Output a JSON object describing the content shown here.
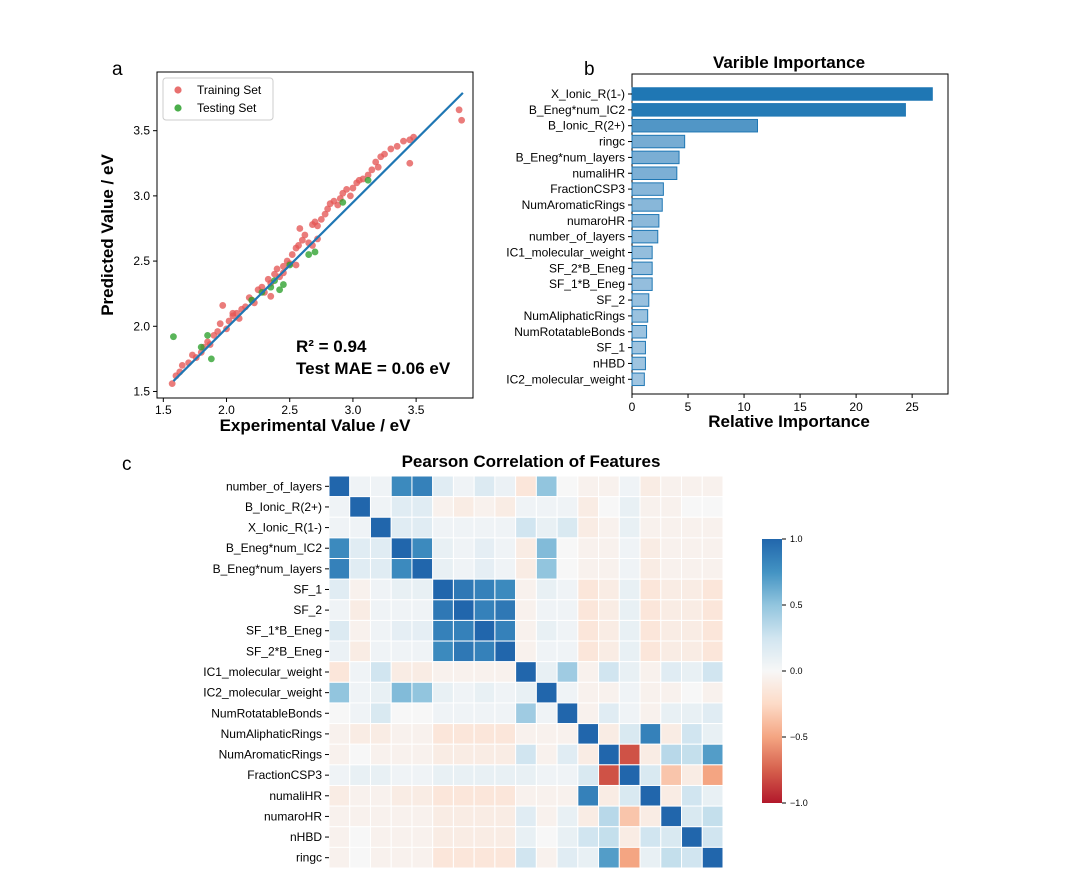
{
  "chart_data": [
    {
      "panel": "a",
      "type": "scatter",
      "title": "",
      "xlabel": "Experimental Value / eV",
      "ylabel": "Predicted Value / eV",
      "xlim": [
        1.45,
        3.95
      ],
      "ylim": [
        1.45,
        3.95
      ],
      "xticks": [
        "1.5",
        "2.0",
        "2.5",
        "3.0",
        "3.5"
      ],
      "yticks": [
        "1.5",
        "2.0",
        "2.5",
        "3.0",
        "3.5"
      ],
      "legend": [
        "Training Set",
        "Testing Set"
      ],
      "annotations": [
        "R² = 0.94",
        "Test MAE = 0.06 eV"
      ],
      "colors": {
        "training": "#e45756",
        "testing": "#2ca02c",
        "fit": "#1f77b4"
      },
      "fit_line": {
        "x": [
          1.58,
          3.87
        ],
        "y": [
          1.58,
          3.79
        ]
      },
      "series": [
        {
          "name": "Training Set",
          "points": [
            [
              1.57,
              1.56
            ],
            [
              1.6,
              1.62
            ],
            [
              1.63,
              1.65
            ],
            [
              1.65,
              1.7
            ],
            [
              1.7,
              1.72
            ],
            [
              1.73,
              1.78
            ],
            [
              1.76,
              1.76
            ],
            [
              1.8,
              1.8
            ],
            [
              1.82,
              1.84
            ],
            [
              1.85,
              1.88
            ],
            [
              1.87,
              1.86
            ],
            [
              1.9,
              1.93
            ],
            [
              1.93,
              1.96
            ],
            [
              1.95,
              2.02
            ],
            [
              1.97,
              2.16
            ],
            [
              2.0,
              1.98
            ],
            [
              2.02,
              2.04
            ],
            [
              2.05,
              2.08
            ],
            [
              2.08,
              2.1
            ],
            [
              2.1,
              2.06
            ],
            [
              2.12,
              2.13
            ],
            [
              2.15,
              2.15
            ],
            [
              2.18,
              2.22
            ],
            [
              2.2,
              2.2
            ],
            [
              2.22,
              2.18
            ],
            [
              2.25,
              2.28
            ],
            [
              2.28,
              2.3
            ],
            [
              2.3,
              2.26
            ],
            [
              2.33,
              2.36
            ],
            [
              2.35,
              2.33
            ],
            [
              2.38,
              2.4
            ],
            [
              2.4,
              2.44
            ],
            [
              2.42,
              2.38
            ],
            [
              2.45,
              2.46
            ],
            [
              2.48,
              2.5
            ],
            [
              2.5,
              2.48
            ],
            [
              2.52,
              2.55
            ],
            [
              2.55,
              2.6
            ],
            [
              2.57,
              2.62
            ],
            [
              2.58,
              2.75
            ],
            [
              2.6,
              2.66
            ],
            [
              2.62,
              2.7
            ],
            [
              2.65,
              2.64
            ],
            [
              2.68,
              2.78
            ],
            [
              2.7,
              2.8
            ],
            [
              2.72,
              2.77
            ],
            [
              2.75,
              2.82
            ],
            [
              2.78,
              2.86
            ],
            [
              2.8,
              2.9
            ],
            [
              2.82,
              2.94
            ],
            [
              2.85,
              2.96
            ],
            [
              2.88,
              2.93
            ],
            [
              2.9,
              2.98
            ],
            [
              2.92,
              3.02
            ],
            [
              2.95,
              3.05
            ],
            [
              2.98,
              3.0
            ],
            [
              3.0,
              3.06
            ],
            [
              3.03,
              3.1
            ],
            [
              3.05,
              3.12
            ],
            [
              3.08,
              3.13
            ],
            [
              3.12,
              3.16
            ],
            [
              3.15,
              3.2
            ],
            [
              3.18,
              3.26
            ],
            [
              3.22,
              3.3
            ],
            [
              3.25,
              3.32
            ],
            [
              3.3,
              3.36
            ],
            [
              3.35,
              3.38
            ],
            [
              3.4,
              3.42
            ],
            [
              3.45,
              3.43
            ],
            [
              3.48,
              3.45
            ],
            [
              2.68,
              2.62
            ],
            [
              2.72,
              2.67
            ],
            [
              3.45,
              3.25
            ],
            [
              2.55,
              2.47
            ],
            [
              2.35,
              2.23
            ],
            [
              3.84,
              3.66
            ],
            [
              3.86,
              3.58
            ],
            [
              3.2,
              3.22
            ],
            [
              2.45,
              2.41
            ],
            [
              2.05,
              2.1
            ]
          ]
        },
        {
          "name": "Testing Set",
          "points": [
            [
              1.58,
              1.92
            ],
            [
              1.85,
              1.93
            ],
            [
              1.88,
              1.75
            ],
            [
              1.8,
              1.84
            ],
            [
              2.28,
              2.26
            ],
            [
              2.35,
              2.3
            ],
            [
              2.42,
              2.28
            ],
            [
              2.45,
              2.32
            ],
            [
              2.5,
              2.47
            ],
            [
              2.65,
              2.55
            ],
            [
              2.7,
              2.57
            ],
            [
              2.92,
              2.95
            ],
            [
              3.12,
              3.12
            ],
            [
              2.2,
              2.2
            ],
            [
              2.38,
              2.35
            ]
          ]
        }
      ]
    },
    {
      "panel": "b",
      "type": "bar",
      "orientation": "horizontal",
      "title": "Varible Importance",
      "xlabel": "Relative Importance",
      "ylabel": "",
      "xlim": [
        0,
        28.2
      ],
      "xticks": [
        "0",
        "5",
        "10",
        "15",
        "20",
        "25"
      ],
      "categories": [
        "X_Ionic_R(1-)",
        "B_Eneg*num_IC2",
        "B_Ionic_R(2+)",
        "ringc",
        "B_Eneg*num_layers",
        "numaliHR",
        "FractionCSP3",
        "NumAromaticRings",
        "numaroHR",
        "number_of_layers",
        "IC1_molecular_weight",
        "SF_2*B_Eneg",
        "SF_1*B_Eneg",
        "SF_2",
        "NumAliphaticRings",
        "NumRotatableBonds",
        "SF_1",
        "nHBD",
        "IC2_molecular_weight"
      ],
      "values": [
        26.8,
        24.4,
        11.2,
        4.7,
        4.2,
        4.0,
        2.8,
        2.7,
        2.4,
        2.3,
        1.8,
        1.8,
        1.8,
        1.5,
        1.4,
        1.3,
        1.2,
        1.2,
        1.1
      ]
    },
    {
      "panel": "c",
      "type": "heatmap",
      "title": "Pearson Correlation of Features",
      "labels": [
        "number_of_layers",
        "B_Ionic_R(2+)",
        "X_Ionic_R(1-)",
        "B_Eneg*num_IC2",
        "B_Eneg*num_layers",
        "SF_1",
        "SF_2",
        "SF_1*B_Eneg",
        "SF_2*B_Eneg",
        "IC1_molecular_weight",
        "IC2_molecular_weight",
        "NumRotatableBonds",
        "NumAliphaticRings",
        "NumAromaticRings",
        "FractionCSP3",
        "numaliHR",
        "numaroHR",
        "nHBD",
        "ringc"
      ],
      "colorbar_ticks": [
        "1.0",
        "0.5",
        "0.0",
        "−0.5",
        "−1.0"
      ],
      "matrix": [
        [
          1.0,
          0.05,
          0.05,
          0.8,
          0.85,
          0.15,
          0.05,
          0.18,
          0.08,
          -0.15,
          0.5,
          0.0,
          -0.05,
          -0.05,
          0.05,
          -0.1,
          -0.05,
          -0.05,
          -0.05
        ],
        [
          0.05,
          1.0,
          0.05,
          0.15,
          0.15,
          -0.05,
          -0.1,
          -0.05,
          -0.1,
          0.05,
          0.05,
          0.05,
          -0.1,
          0.0,
          0.1,
          -0.05,
          -0.05,
          0.0,
          0.0
        ],
        [
          0.05,
          0.05,
          1.0,
          0.15,
          0.15,
          0.05,
          0.05,
          0.05,
          0.05,
          0.25,
          0.1,
          0.2,
          -0.1,
          -0.05,
          0.1,
          -0.05,
          -0.05,
          -0.05,
          -0.05
        ],
        [
          0.8,
          0.15,
          0.15,
          1.0,
          0.8,
          0.1,
          0.05,
          0.12,
          0.05,
          -0.1,
          0.55,
          0.0,
          -0.05,
          -0.05,
          0.05,
          -0.1,
          -0.05,
          -0.05,
          -0.05
        ],
        [
          0.85,
          0.15,
          0.15,
          0.8,
          1.0,
          0.1,
          0.05,
          0.12,
          0.05,
          -0.1,
          0.5,
          0.0,
          -0.05,
          -0.05,
          0.05,
          -0.1,
          -0.05,
          -0.05,
          -0.05
        ],
        [
          0.15,
          -0.05,
          0.05,
          0.1,
          0.1,
          1.0,
          0.9,
          0.85,
          0.8,
          -0.05,
          0.1,
          0.05,
          -0.15,
          -0.1,
          0.1,
          -0.15,
          -0.1,
          -0.1,
          -0.15
        ],
        [
          0.05,
          -0.1,
          0.05,
          0.05,
          0.05,
          0.9,
          1.0,
          0.85,
          0.9,
          -0.05,
          0.05,
          0.05,
          -0.15,
          -0.1,
          0.1,
          -0.15,
          -0.1,
          -0.1,
          -0.15
        ],
        [
          0.18,
          -0.05,
          0.05,
          0.12,
          0.12,
          0.85,
          0.85,
          1.0,
          0.85,
          -0.05,
          0.1,
          0.05,
          -0.15,
          -0.1,
          0.1,
          -0.15,
          -0.1,
          -0.1,
          -0.15
        ],
        [
          0.08,
          -0.1,
          0.05,
          0.05,
          0.05,
          0.8,
          0.9,
          0.85,
          1.0,
          -0.05,
          0.05,
          0.05,
          -0.15,
          -0.1,
          0.1,
          -0.15,
          -0.1,
          -0.1,
          -0.15
        ],
        [
          -0.15,
          0.05,
          0.25,
          -0.1,
          -0.1,
          -0.05,
          -0.05,
          -0.05,
          -0.05,
          1.0,
          0.1,
          0.45,
          -0.05,
          0.25,
          0.1,
          -0.05,
          0.15,
          0.1,
          0.25
        ],
        [
          0.5,
          0.05,
          0.1,
          0.55,
          0.5,
          0.1,
          0.05,
          0.1,
          0.05,
          0.1,
          1.0,
          0.05,
          -0.05,
          -0.05,
          0.05,
          -0.05,
          -0.05,
          0.0,
          -0.05
        ],
        [
          0.0,
          0.05,
          0.2,
          0.0,
          0.0,
          0.05,
          0.05,
          0.05,
          0.05,
          0.45,
          0.05,
          1.0,
          -0.05,
          0.15,
          0.05,
          -0.05,
          0.1,
          0.1,
          0.15
        ],
        [
          -0.05,
          -0.1,
          -0.1,
          -0.05,
          -0.05,
          -0.15,
          -0.15,
          -0.15,
          -0.15,
          -0.05,
          -0.05,
          -0.05,
          1.0,
          -0.1,
          0.2,
          0.85,
          -0.1,
          0.25,
          0.1
        ],
        [
          -0.05,
          0.0,
          -0.05,
          -0.05,
          -0.05,
          -0.1,
          -0.1,
          -0.1,
          -0.1,
          0.25,
          -0.05,
          0.15,
          -0.1,
          1.0,
          -0.8,
          -0.1,
          0.35,
          0.3,
          0.7
        ],
        [
          0.05,
          0.1,
          0.1,
          0.05,
          0.05,
          0.1,
          0.1,
          0.1,
          0.1,
          0.1,
          0.05,
          0.05,
          0.2,
          -0.8,
          1.0,
          0.2,
          -0.35,
          -0.1,
          -0.5
        ],
        [
          -0.1,
          -0.05,
          -0.05,
          -0.1,
          -0.1,
          -0.15,
          -0.15,
          -0.15,
          -0.15,
          -0.05,
          -0.05,
          -0.05,
          0.85,
          -0.1,
          0.2,
          1.0,
          -0.1,
          0.25,
          0.1
        ],
        [
          -0.05,
          -0.05,
          -0.05,
          -0.05,
          -0.05,
          -0.1,
          -0.1,
          -0.1,
          -0.1,
          0.15,
          -0.05,
          0.1,
          -0.1,
          0.35,
          -0.35,
          -0.1,
          1.0,
          0.2,
          0.3
        ],
        [
          -0.05,
          0.0,
          -0.05,
          -0.05,
          -0.05,
          -0.1,
          -0.1,
          -0.1,
          -0.1,
          0.1,
          0.0,
          0.1,
          0.25,
          0.3,
          -0.1,
          0.25,
          0.2,
          1.0,
          0.25
        ],
        [
          -0.05,
          0.0,
          -0.05,
          -0.05,
          -0.05,
          -0.15,
          -0.15,
          -0.15,
          -0.15,
          0.25,
          -0.05,
          0.15,
          0.1,
          0.7,
          -0.5,
          0.1,
          0.3,
          0.25,
          1.0
        ]
      ]
    }
  ],
  "panel_labels": {
    "a": "a",
    "b": "b",
    "c": "c"
  }
}
